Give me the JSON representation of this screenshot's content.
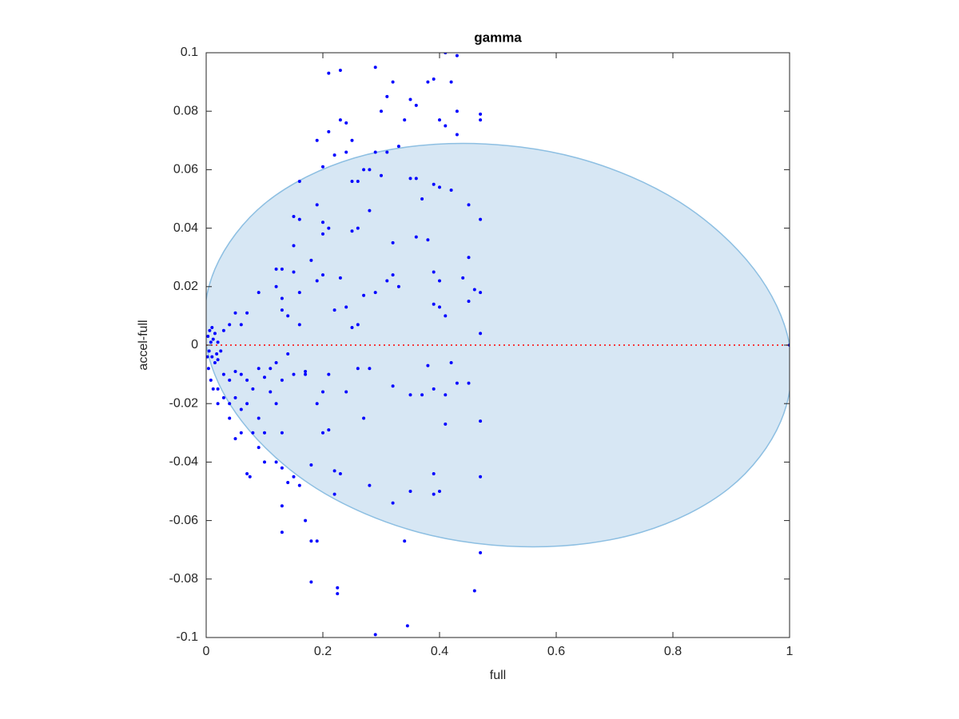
{
  "chart_data": {
    "type": "scatter",
    "title": "gamma",
    "x_label": "full",
    "y_label": "accel-full",
    "xlim": [
      0,
      1
    ],
    "ylim": [
      -0.1,
      0.1
    ],
    "xticks": [
      0,
      0.2,
      0.4,
      0.6,
      0.8,
      1
    ],
    "yticks": [
      -0.1,
      -0.08,
      -0.06,
      -0.04,
      -0.02,
      0,
      0.02,
      0.04,
      0.06,
      0.08,
      0.1
    ],
    "ellipse": {
      "fill": "#d7e7f4",
      "stroke": "#8dbfe2",
      "x": [
        1.0,
        0.939,
        0.811,
        0.636,
        0.44,
        0.254,
        0.104,
        0.015,
        0.0,
        0.061,
        0.189,
        0.364,
        0.56,
        0.746,
        0.896,
        0.985
      ],
      "y": [
        0,
        0.026,
        0.049,
        0.064,
        0.069,
        0.064,
        0.049,
        0.026,
        0,
        -0.026,
        -0.049,
        -0.064,
        -0.069,
        -0.064,
        -0.049,
        -0.026
      ]
    },
    "reference_line": {
      "y": 0,
      "color": "#ff0000"
    },
    "color": "#0000ff",
    "x": [
      0.21,
      0.23,
      0.29,
      0.32,
      0.31,
      0.35,
      0.36,
      0.38,
      0.39,
      0.41,
      0.43,
      0.42,
      0.43,
      0.47,
      0.47,
      0.3,
      0.34,
      0.4,
      0.41,
      0.43,
      0.23,
      0.24,
      0.21,
      0.25,
      0.19,
      0.22,
      0.2,
      0.24,
      0.29,
      0.31,
      0.33,
      0.27,
      0.28,
      0.25,
      0.26,
      0.3,
      0.35,
      0.36,
      0.39,
      0.4,
      0.42,
      0.37,
      0.16,
      0.19,
      0.15,
      0.16,
      0.2,
      0.2,
      0.21,
      0.25,
      0.26,
      0.28,
      0.32,
      0.36,
      0.38,
      0.45,
      0.47,
      0.45,
      0.15,
      0.12,
      0.13,
      0.15,
      0.18,
      0.12,
      0.13,
      0.16,
      0.19,
      0.23,
      0.2,
      0.22,
      0.24,
      0.27,
      0.29,
      0.31,
      0.32,
      0.33,
      0.39,
      0.4,
      0.44,
      0.45,
      0.46,
      0.47,
      0.39,
      0.4,
      0.41,
      0.26,
      0.25,
      0.16,
      0.14,
      0.13,
      0.09,
      0.05,
      0.07,
      0.06,
      0.03,
      0.04,
      0.47,
      0.02,
      0.03,
      0.04,
      0.05,
      0.06,
      0.07,
      0.08,
      0.09,
      0.1,
      0.11,
      0.12,
      0.13,
      0.15,
      0.17,
      0.14,
      0.02,
      0.03,
      0.04,
      0.05,
      0.06,
      0.07,
      0.08,
      0.09,
      0.1,
      0.11,
      0.12,
      0.04,
      0.05,
      0.06,
      0.07,
      0.075,
      0.09,
      0.1,
      0.12,
      0.13,
      0.13,
      0.14,
      0.15,
      0.13,
      0.13,
      0.16,
      0.17,
      0.18,
      0.19,
      0.18,
      0.18,
      0.22,
      0.19,
      0.2,
      0.21,
      0.2,
      0.24,
      0.26,
      0.28,
      0.27,
      0.22,
      0.23,
      0.225,
      0.225,
      0.28,
      0.29,
      0.32,
      0.32,
      0.34,
      0.345,
      0.35,
      0.35,
      0.37,
      0.38,
      0.39,
      0.39,
      0.39,
      0.4,
      0.41,
      0.42,
      0.41,
      0.43,
      0.45,
      0.47,
      0.47,
      0.47,
      0.46,
      0.21,
      0.17,
      0.02,
      0.003,
      0.005,
      0.008,
      0.01,
      0.012,
      0.015,
      0.006,
      0.01,
      0.02,
      0.018,
      0.004,
      0.008,
      0.012,
      0.025,
      0.015,
      0.002,
      1
    ],
    "values": [
      0.093,
      0.094,
      0.095,
      0.09,
      0.085,
      0.084,
      0.082,
      0.09,
      0.091,
      0.1,
      0.099,
      0.09,
      0.08,
      0.079,
      0.077,
      0.08,
      0.077,
      0.077,
      0.075,
      0.072,
      0.077,
      0.076,
      0.073,
      0.07,
      0.07,
      0.065,
      0.061,
      0.066,
      0.066,
      0.066,
      0.068,
      0.06,
      0.06,
      0.056,
      0.056,
      0.058,
      0.057,
      0.057,
      0.055,
      0.054,
      0.053,
      0.05,
      0.056,
      0.048,
      0.044,
      0.043,
      0.042,
      0.038,
      0.04,
      0.039,
      0.04,
      0.046,
      0.035,
      0.037,
      0.036,
      0.048,
      0.043,
      0.03,
      0.034,
      0.026,
      0.026,
      0.025,
      0.029,
      0.02,
      0.016,
      0.018,
      0.022,
      0.023,
      0.024,
      0.012,
      0.013,
      0.017,
      0.018,
      0.022,
      0.024,
      0.02,
      0.025,
      0.022,
      0.023,
      0.015,
      0.019,
      0.018,
      0.014,
      0.013,
      0.01,
      0.007,
      0.006,
      0.007,
      0.01,
      0.012,
      0.018,
      0.011,
      0.011,
      0.007,
      0.005,
      0.007,
      0.004,
      -0.005,
      -0.01,
      -0.012,
      -0.009,
      -0.01,
      -0.012,
      -0.015,
      -0.008,
      -0.011,
      -0.008,
      -0.006,
      -0.012,
      -0.01,
      -0.01,
      -0.003,
      -0.015,
      -0.018,
      -0.02,
      -0.018,
      -0.022,
      -0.02,
      -0.03,
      -0.025,
      -0.03,
      -0.016,
      -0.02,
      -0.025,
      -0.032,
      -0.03,
      -0.044,
      -0.045,
      -0.035,
      -0.04,
      -0.04,
      -0.042,
      -0.03,
      -0.047,
      -0.045,
      -0.064,
      -0.055,
      -0.048,
      -0.06,
      -0.067,
      -0.067,
      -0.041,
      -0.081,
      -0.051,
      -0.02,
      -0.03,
      -0.029,
      -0.016,
      -0.016,
      -0.008,
      -0.008,
      -0.025,
      -0.043,
      -0.044,
      -0.083,
      -0.085,
      -0.048,
      -0.099,
      -0.054,
      -0.014,
      -0.067,
      -0.096,
      -0.05,
      -0.017,
      -0.017,
      -0.007,
      -0.015,
      -0.044,
      -0.051,
      -0.05,
      -0.017,
      -0.006,
      -0.027,
      -0.013,
      -0.013,
      -0.026,
      -0.045,
      -0.071,
      -0.084,
      -0.01,
      -0.009,
      -0.02,
      0.003,
      -0.002,
      0.001,
      -0.004,
      0.002,
      -0.006,
      0.005,
      0.006,
      0.001,
      -0.003,
      -0.008,
      -0.012,
      -0.015,
      -0.002,
      0.004,
      -0.004,
      0
    ]
  }
}
